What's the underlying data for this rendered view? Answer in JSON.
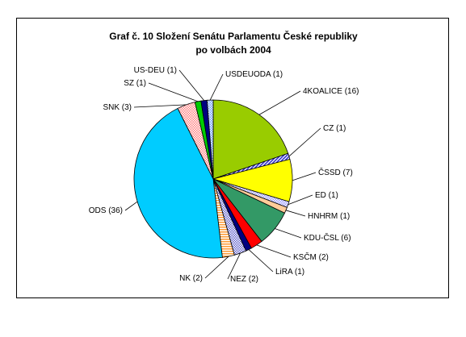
{
  "chart_data": {
    "type": "pie",
    "title": "Graf č. 10 Složení Senátu Parlamentu České republiky",
    "subtitle": "po volbách 2004",
    "slices": [
      {
        "label": "4KOALICE (16)",
        "value": 16,
        "color": "#99cc00",
        "pattern": "solid"
      },
      {
        "label": "CZ (1)",
        "value": 1,
        "color": "#3333cc",
        "pattern": "diag"
      },
      {
        "label": "ČSSD (7)",
        "value": 7,
        "color": "#ffff00",
        "pattern": "solid"
      },
      {
        "label": "ED (1)",
        "value": 1,
        "color": "#ccccff",
        "pattern": "check"
      },
      {
        "label": "HNHRM (1)",
        "value": 1,
        "color": "#ffcc99",
        "pattern": "solid"
      },
      {
        "label": "KDU-ČSL (6)",
        "value": 6,
        "color": "#339966",
        "pattern": "solid"
      },
      {
        "label": "KSČM (2)",
        "value": 2,
        "color": "#ff0000",
        "pattern": "solid"
      },
      {
        "label": "LiRA (1)",
        "value": 1,
        "color": "#000080",
        "pattern": "solid"
      },
      {
        "label": "NEZ (2)",
        "value": 2,
        "color": "#6666cc",
        "pattern": "check"
      },
      {
        "label": "NK (2)",
        "value": 2,
        "color": "#ff9933",
        "pattern": "stripe"
      },
      {
        "label": "ODS (36)",
        "value": 36,
        "color": "#00ccff",
        "pattern": "solid"
      },
      {
        "label": "SNK (3)",
        "value": 3,
        "color": "#ff9999",
        "pattern": "check"
      },
      {
        "label": "SZ (1)",
        "value": 1,
        "color": "#00cc00",
        "pattern": "solid"
      },
      {
        "label": "US-DEU (1)",
        "value": 1,
        "color": "#000080",
        "pattern": "solid"
      },
      {
        "label": "USDEUODA (1)",
        "value": 1,
        "color": "#6699ff",
        "pattern": "check"
      }
    ]
  }
}
